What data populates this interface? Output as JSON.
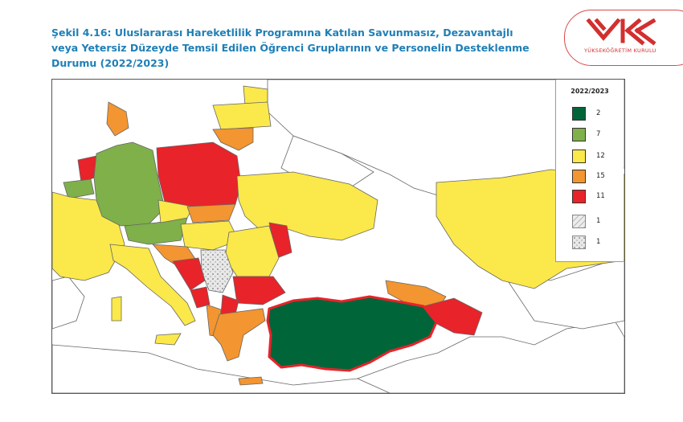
{
  "header": {
    "title_lines": [
      "Şekil 4.16: Uluslararası Hareketlilik Programına Katılan Savunmasız, Dezavantajlı",
      "veya  Yetersiz Düzeyde Temsil Edilen Öğrenci Gruplarının ve Personelin Desteklenme",
      "Durumu (2022/2023)"
    ]
  },
  "logo": {
    "text": "YÜKSEKÖĞRETİM KURULU",
    "color": "#d32f2f"
  },
  "legend": {
    "title": "2022/2023",
    "items": [
      {
        "label": "2",
        "color": "#00663a",
        "pattern": "solid"
      },
      {
        "label": "7",
        "color": "#7fb04a",
        "pattern": "solid"
      },
      {
        "label": "12",
        "color": "#fbe84a",
        "pattern": "solid"
      },
      {
        "label": "15",
        "color": "#f39530",
        "pattern": "solid"
      },
      {
        "label": "11",
        "color": "#e8232a",
        "pattern": "solid"
      },
      {
        "label": "1",
        "color": "#e6e6e6",
        "pattern": "hatch"
      },
      {
        "label": "1",
        "color": "#e6e6e6",
        "pattern": "dots"
      }
    ]
  },
  "map": {
    "regions": [
      {
        "name": "turkey",
        "category": "2"
      },
      {
        "name": "germany",
        "category": "7"
      },
      {
        "name": "belgium",
        "category": "7"
      },
      {
        "name": "austria",
        "category": "7"
      },
      {
        "name": "france",
        "category": "12"
      },
      {
        "name": "ukraine",
        "category": "12"
      },
      {
        "name": "romania",
        "category": "12"
      },
      {
        "name": "kazakhstan",
        "category": "12"
      },
      {
        "name": "estonia",
        "category": "12"
      },
      {
        "name": "latvia",
        "category": "12"
      },
      {
        "name": "italy",
        "category": "12"
      },
      {
        "name": "greece",
        "category": "15"
      },
      {
        "name": "lithuania",
        "category": "15"
      },
      {
        "name": "slovakia",
        "category": "15"
      },
      {
        "name": "denmark",
        "category": "15"
      },
      {
        "name": "georgia",
        "category": "15"
      },
      {
        "name": "poland",
        "category": "11"
      },
      {
        "name": "netherlands",
        "category": "11"
      },
      {
        "name": "bulgaria",
        "category": "11"
      },
      {
        "name": "moldova",
        "category": "11"
      },
      {
        "name": "azerbaijan",
        "category": "11"
      },
      {
        "name": "serbia",
        "category": "1-dots"
      }
    ]
  }
}
